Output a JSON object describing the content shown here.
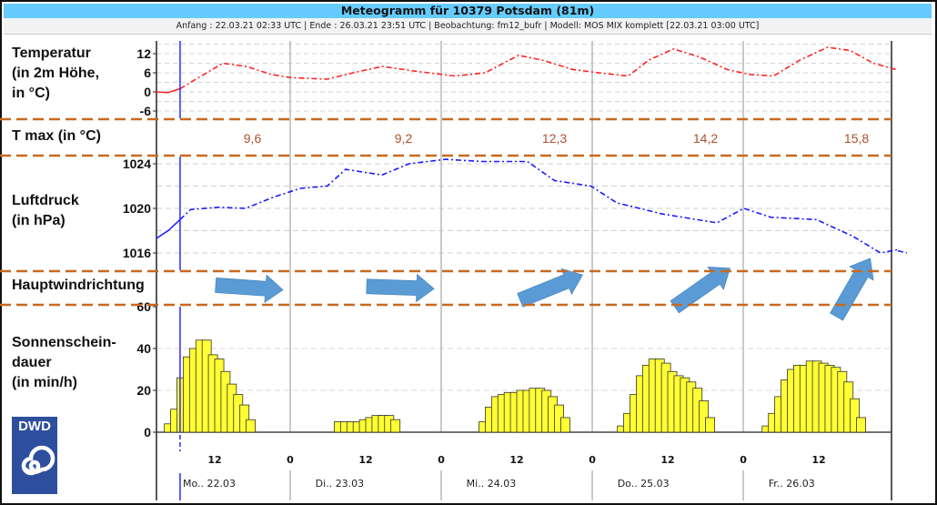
{
  "header": {
    "title": "Meteogramm für 10379 Potsdam (81m)",
    "subtitle": "Anfang : 22.03.21 02:33 UTC | Ende : 26.03.21 23:51 UTC | Beobachtung: fm12_bufr | Modell: MOS MIX komplett [22.03.21 03:00 UTC]"
  },
  "labels": {
    "temperature": [
      "Temperatur",
      "(in 2m Höhe,",
      "in °C)"
    ],
    "tmax": "T max (in °C)",
    "pressure": [
      "Luftdruck",
      "(in hPa)"
    ],
    "wind": "Hauptwindrichtung",
    "sunshine": [
      "Sonnenschein-",
      "dauer",
      "(in min/h)"
    ]
  },
  "logo": {
    "text": "DWD"
  },
  "colors": {
    "temperature": "#ff2020",
    "pressure": "#1a1aff",
    "separator": "#c8691e",
    "wind_arrow": "#5b9bd5",
    "sunshine": "#ffff33",
    "tmax": "#b0502a"
  },
  "time_axis": {
    "hour_labels": [
      "12",
      "0",
      "12",
      "0",
      "12",
      "0",
      "12",
      "0",
      "12"
    ],
    "hour_values": [
      12,
      24,
      36,
      48,
      60,
      72,
      84,
      96,
      108
    ],
    "dates": [
      "Mo.. 22.03",
      "Di.. 23.03",
      "Mi.. 24.03",
      "Do.. 25.03",
      "Fr.. 26.03"
    ],
    "now_hour": 6.5
  },
  "chart_data": [
    {
      "type": "line",
      "title": "Temperatur (in 2m Höhe, in °C)",
      "x_unit": "hours since 22.03 00:00 UTC",
      "ylim": [
        -8,
        16
      ],
      "yticks": [
        -6,
        0,
        6,
        12
      ],
      "ytick_labels": [
        "-6",
        "0",
        "6",
        "12"
      ],
      "series": [
        {
          "name": "Temperatur",
          "points": [
            [
              2.7,
              0
            ],
            [
              4.6,
              -0.2
            ],
            [
              6.5,
              1
            ],
            [
              9,
              4
            ],
            [
              13.3,
              9
            ],
            [
              17,
              8
            ],
            [
              21,
              5.5
            ],
            [
              24.1,
              4.5
            ],
            [
              29.9,
              4
            ],
            [
              34,
              6
            ],
            [
              38.6,
              8
            ],
            [
              44,
              6.5
            ],
            [
              50.2,
              5
            ],
            [
              55,
              6
            ],
            [
              60.3,
              11.5
            ],
            [
              64,
              10
            ],
            [
              69,
              7
            ],
            [
              73,
              6
            ],
            [
              77.7,
              5
            ],
            [
              81,
              10
            ],
            [
              84.9,
              13.5
            ],
            [
              89,
              11
            ],
            [
              93.5,
              7
            ],
            [
              97,
              5.5
            ],
            [
              100.8,
              5
            ],
            [
              105,
              10
            ],
            [
              109.4,
              14
            ],
            [
              113,
              13
            ],
            [
              116.7,
              9
            ],
            [
              120.3,
              7
            ]
          ]
        }
      ]
    },
    {
      "type": "table",
      "title": "T max (in °C)",
      "categories": [
        "Mo.. 22.03",
        "Di.. 23.03",
        "Mi.. 24.03",
        "Do.. 25.03",
        "Fr.. 26.03"
      ],
      "values": [
        "9,6",
        "9,2",
        "12,3",
        "14,2",
        "15,8"
      ]
    },
    {
      "type": "line",
      "title": "Luftdruck (in hPa)",
      "ylim": [
        1015,
        1024.8
      ],
      "yticks": [
        1016,
        1020,
        1024
      ],
      "ytick_labels": [
        "1016",
        "1020",
        "1024"
      ],
      "series": [
        {
          "name": "Luftdruck",
          "points": [
            [
              2.7,
              1017.3
            ],
            [
              4.6,
              1018
            ],
            [
              6.5,
              1019
            ],
            [
              8.2,
              1019.9
            ],
            [
              12.6,
              1020.1
            ],
            [
              16.9,
              1020
            ],
            [
              21.3,
              1021
            ],
            [
              25.6,
              1021.8
            ],
            [
              29.9,
              1022
            ],
            [
              32.8,
              1023.5
            ],
            [
              38.6,
              1023
            ],
            [
              42.9,
              1024
            ],
            [
              48.7,
              1024.4
            ],
            [
              54.5,
              1024.2
            ],
            [
              61.7,
              1024.2
            ],
            [
              66,
              1022.5
            ],
            [
              71.8,
              1022
            ],
            [
              75.9,
              1020.5
            ],
            [
              83.1,
              1019.5
            ],
            [
              91.8,
              1018.7
            ],
            [
              96.1,
              1020
            ],
            [
              100.4,
              1019.2
            ],
            [
              107.6,
              1019
            ],
            [
              113.4,
              1017.5
            ],
            [
              117.8,
              1016
            ],
            [
              120.6,
              1016.3
            ],
            [
              120.5,
              1016.2
            ],
            [
              122,
              1016
            ]
          ]
        }
      ]
    },
    {
      "type": "scatter",
      "title": "Hauptwindrichtung",
      "categories": [
        "Mo.. 22.03",
        "Di.. 23.03",
        "Mi.. 24.03",
        "Do.. 25.03",
        "Fr.. 26.03"
      ],
      "arrow_heading_deg": [
        94,
        92,
        68,
        55,
        30
      ]
    },
    {
      "type": "bar",
      "title": "Sonnenscheindauer (in min/h)",
      "ylim": [
        0,
        60
      ],
      "yticks": [
        0,
        20,
        40,
        60
      ],
      "ytick_labels": [
        "0",
        "20",
        "40",
        "60"
      ],
      "days": [
        {
          "start_hour": 4,
          "values": [
            4,
            11,
            26,
            36,
            40,
            44,
            44,
            37,
            35,
            29,
            23,
            18,
            13,
            6
          ]
        },
        {
          "start_hour": 31,
          "values": [
            5,
            5,
            5,
            5,
            6,
            7,
            8,
            8,
            8,
            6
          ]
        },
        {
          "start_hour": 54,
          "values": [
            5,
            12,
            17,
            18,
            19,
            19,
            20,
            20,
            21,
            21,
            20,
            17,
            13,
            7
          ]
        },
        {
          "start_hour": 76,
          "values": [
            3,
            9,
            18,
            27,
            32,
            35,
            35,
            33,
            29,
            27,
            26,
            24,
            21,
            15,
            7
          ]
        },
        {
          "start_hour": 99,
          "values": [
            3,
            9,
            17,
            25,
            30,
            32,
            32,
            34,
            34,
            33,
            32,
            31,
            29,
            24,
            16,
            7
          ]
        }
      ]
    }
  ]
}
